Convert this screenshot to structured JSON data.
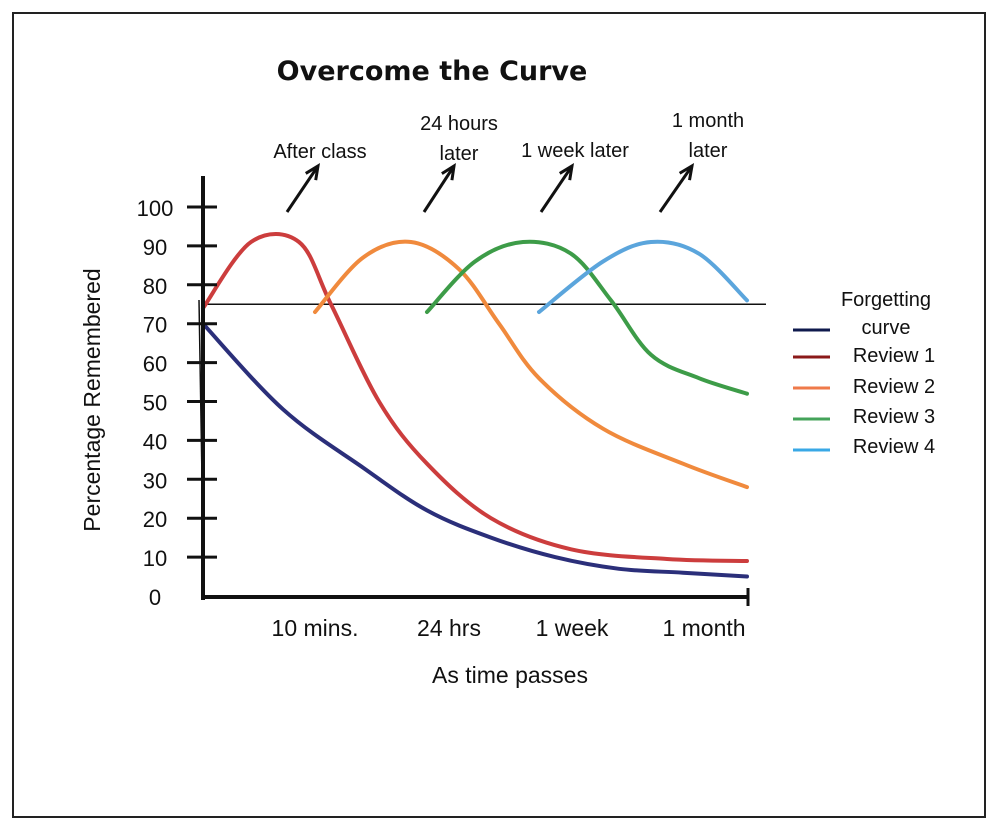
{
  "chart_data": {
    "type": "line",
    "title": "Overcome the Curve",
    "xlabel": "As time passes",
    "ylabel": "Percentage Remembered",
    "ylim": [
      0,
      100
    ],
    "yticks": [
      0,
      10,
      20,
      30,
      40,
      50,
      60,
      70,
      80,
      90,
      100
    ],
    "categories": [
      "10 mins.",
      "24 hrs",
      "1 week",
      "1 month"
    ],
    "threshold": 75,
    "annotations": [
      {
        "lines": [
          "After class"
        ],
        "points_to": "Review 1"
      },
      {
        "lines": [
          "24 hours",
          "later"
        ],
        "points_to": "Review 2"
      },
      {
        "lines": [
          "1 week later"
        ],
        "points_to": "Review 3"
      },
      {
        "lines": [
          "1 month",
          "later"
        ],
        "points_to": "Review 4"
      }
    ],
    "legend_position": "right",
    "series": [
      {
        "name": "Forgetting curve",
        "color": "#2b2f7a",
        "legend_color": "#0f1a4d",
        "points": [
          [
            0,
            70
          ],
          [
            0.5,
            48
          ],
          [
            1,
            33
          ],
          [
            1.4,
            22
          ],
          [
            1.8,
            15
          ],
          [
            2.2,
            10
          ],
          [
            2.6,
            7
          ],
          [
            3,
            6
          ],
          [
            3.4,
            5
          ]
        ]
      },
      {
        "name": "Review 1",
        "color": "#cc3d3d",
        "legend_color": "#8b1a1a",
        "points": [
          [
            0,
            74
          ],
          [
            0.3,
            91
          ],
          [
            0.6,
            91
          ],
          [
            0.8,
            75
          ],
          [
            1.1,
            50
          ],
          [
            1.4,
            34
          ],
          [
            1.8,
            20
          ],
          [
            2.3,
            12
          ],
          [
            2.9,
            9.5
          ],
          [
            3.4,
            9
          ]
        ]
      },
      {
        "name": "Review 2",
        "color": "#f08a3d",
        "legend_color": "#ef7a4a",
        "points": [
          [
            0.7,
            73
          ],
          [
            1,
            87
          ],
          [
            1.3,
            91
          ],
          [
            1.6,
            84
          ],
          [
            1.85,
            70
          ],
          [
            2.1,
            56
          ],
          [
            2.5,
            43
          ],
          [
            3,
            34
          ],
          [
            3.4,
            28
          ]
        ]
      },
      {
        "name": "Review 3",
        "color": "#3d9c48",
        "legend_color": "#44a35a",
        "points": [
          [
            1.4,
            73
          ],
          [
            1.7,
            86
          ],
          [
            2,
            91
          ],
          [
            2.3,
            88
          ],
          [
            2.55,
            76
          ],
          [
            2.8,
            62
          ],
          [
            3.1,
            56
          ],
          [
            3.4,
            52
          ]
        ]
      },
      {
        "name": "Review 4",
        "color": "#5ba5dc",
        "legend_color": "#39a8e6",
        "points": [
          [
            2.1,
            73
          ],
          [
            2.5,
            86
          ],
          [
            2.8,
            91
          ],
          [
            3.1,
            88
          ],
          [
            3.4,
            76
          ]
        ]
      }
    ]
  }
}
